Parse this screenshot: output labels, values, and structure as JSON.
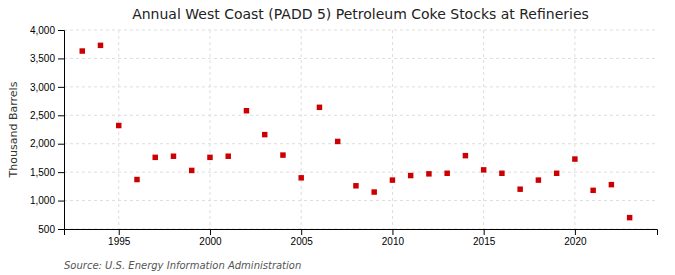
{
  "chart_data": {
    "type": "scatter",
    "title": "Annual West Coast (PADD 5) Petroleum Coke Stocks at Refineries",
    "ylabel": "Thousand Barrels",
    "annotations": [
      "Source: U.S. Energy Information Administration"
    ],
    "x": [
      1993,
      1994,
      1995,
      1996,
      1997,
      1998,
      1999,
      2000,
      2001,
      2002,
      2003,
      2004,
      2005,
      2006,
      2007,
      2008,
      2009,
      2010,
      2011,
      2012,
      2013,
      2014,
      2015,
      2016,
      2017,
      2018,
      2019,
      2020,
      2021,
      2022,
      2023
    ],
    "values": [
      3630,
      3730,
      2320,
      1370,
      1760,
      1780,
      1530,
      1760,
      1780,
      2580,
      2160,
      1800,
      1400,
      2640,
      2040,
      1260,
      1150,
      1360,
      1440,
      1470,
      1480,
      1790,
      1540,
      1480,
      1200,
      1360,
      1480,
      1730,
      1180,
      1280,
      700
    ],
    "color": "#cc0000",
    "marker": "square",
    "xlim": [
      1992,
      2024.5
    ],
    "xticks": [
      1995,
      2000,
      2005,
      2010,
      2015,
      2020
    ],
    "ylim": [
      500,
      4000
    ],
    "yticks": [
      500,
      {
        "value": 1000,
        "label": "1,000"
      },
      {
        "value": 1500,
        "label": "1,500"
      },
      {
        "value": 2000,
        "label": "2,000"
      },
      {
        "value": 2500,
        "label": "2,500"
      },
      {
        "value": 3000,
        "label": "3,000"
      },
      {
        "value": 3500,
        "label": "3,500"
      },
      {
        "value": 4000,
        "label": "4,000"
      }
    ],
    "grid": true
  }
}
